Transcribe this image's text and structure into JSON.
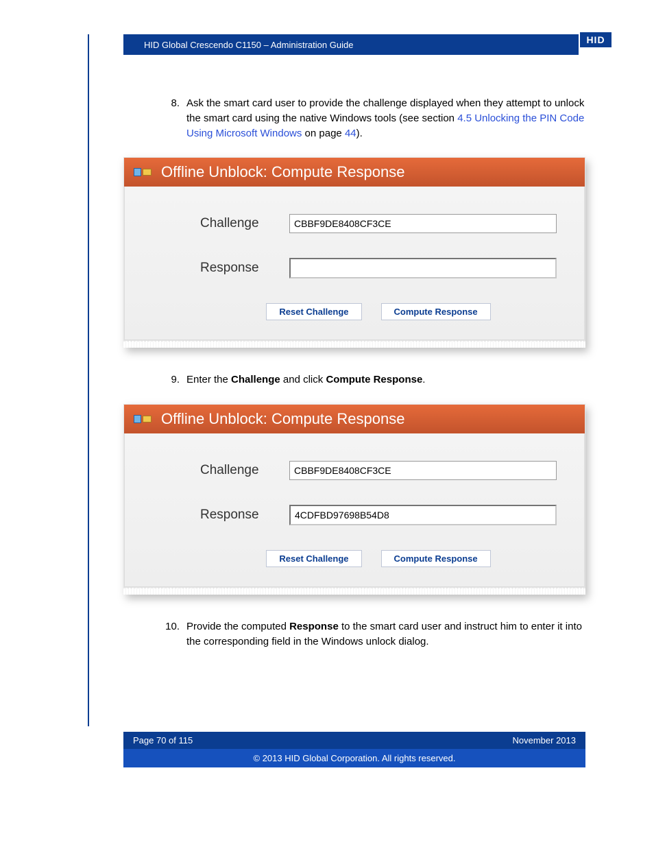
{
  "header": {
    "title": "HID Global Crescendo C1150  – Administration Guide",
    "logo_text": "HID"
  },
  "steps": {
    "s8": {
      "num": "8.",
      "text_before_link": "Ask the smart card user to provide the challenge displayed when they attempt to unlock the smart card using the native Windows tools (see section ",
      "link_text": "4.5 Unlocking the PIN Code Using Microsoft Windows",
      "text_mid": " on page ",
      "page_link": "44",
      "text_after": ")."
    },
    "s9": {
      "num": "9.",
      "text1": "Enter the ",
      "bold1": "Challenge",
      "text2": " and click ",
      "bold2": "Compute Response",
      "text3": "."
    },
    "s10": {
      "num": "10.",
      "text1": "Provide the computed ",
      "bold1": "Response",
      "text2": " to the smart card user and instruct him to enter it into the corresponding field in the Windows unlock dialog."
    }
  },
  "dialog": {
    "title": "Offline Unblock: Compute Response",
    "challenge_label": "Challenge",
    "response_label": "Response",
    "reset_btn": "Reset Challenge",
    "compute_btn": "Compute Response",
    "shot1": {
      "challenge_value": "CBBF9DE8408CF3CE",
      "response_value": ""
    },
    "shot2": {
      "challenge_value": "CBBF9DE8408CF3CE",
      "response_value": "4CDFBD97698B54D8"
    }
  },
  "footer": {
    "page": "Page 70 of 115",
    "date": "November 2013",
    "copyright": "© 2013 HID Global Corporation. All rights reserved."
  },
  "colors": {
    "header_bg": "#0b3d91",
    "link": "#2a4fd8",
    "dlg_grad_top": "#e56a3a",
    "dlg_grad_bot": "#c3532c",
    "footer_bot": "#1651bd"
  }
}
